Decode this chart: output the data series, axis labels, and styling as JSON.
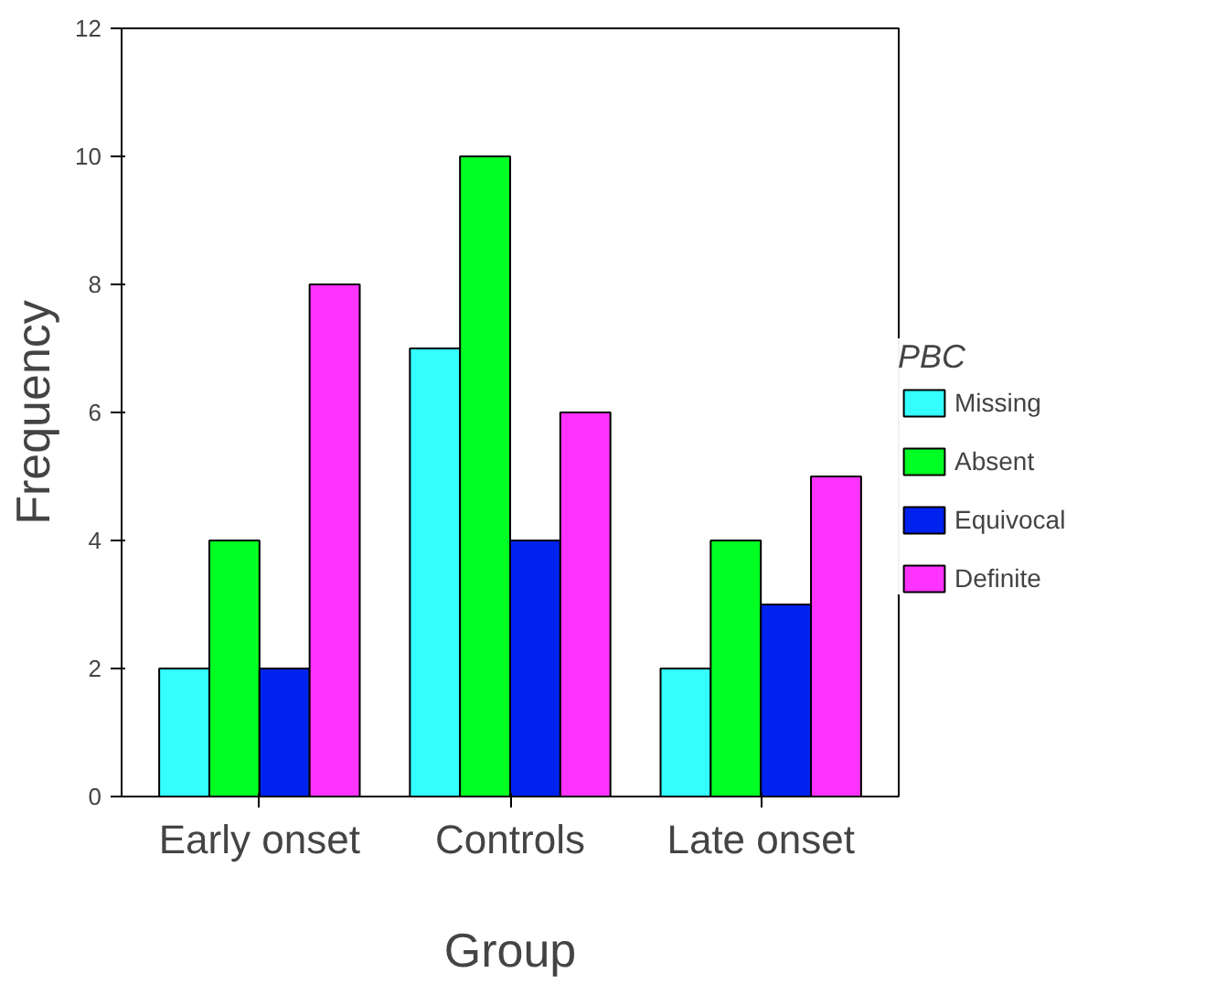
{
  "chart_data": {
    "type": "bar",
    "xlabel": "Group",
    "ylabel": "Frequency",
    "legend_title": "PBC",
    "categories": [
      "Early onset",
      "Controls",
      "Late onset"
    ],
    "series": [
      {
        "name": "Missing",
        "color": "#33ffff",
        "values": [
          2,
          7,
          2
        ]
      },
      {
        "name": "Absent",
        "color": "#00ff22",
        "values": [
          4,
          10,
          4
        ]
      },
      {
        "name": "Equivocal",
        "color": "#0022ee",
        "values": [
          2,
          4,
          3
        ]
      },
      {
        "name": "Definite",
        "color": "#ff33ff",
        "values": [
          8,
          6,
          5
        ]
      }
    ],
    "ylim": [
      0,
      12
    ],
    "yticks": [
      0,
      2,
      4,
      6,
      8,
      10,
      12
    ],
    "legend": "right"
  }
}
